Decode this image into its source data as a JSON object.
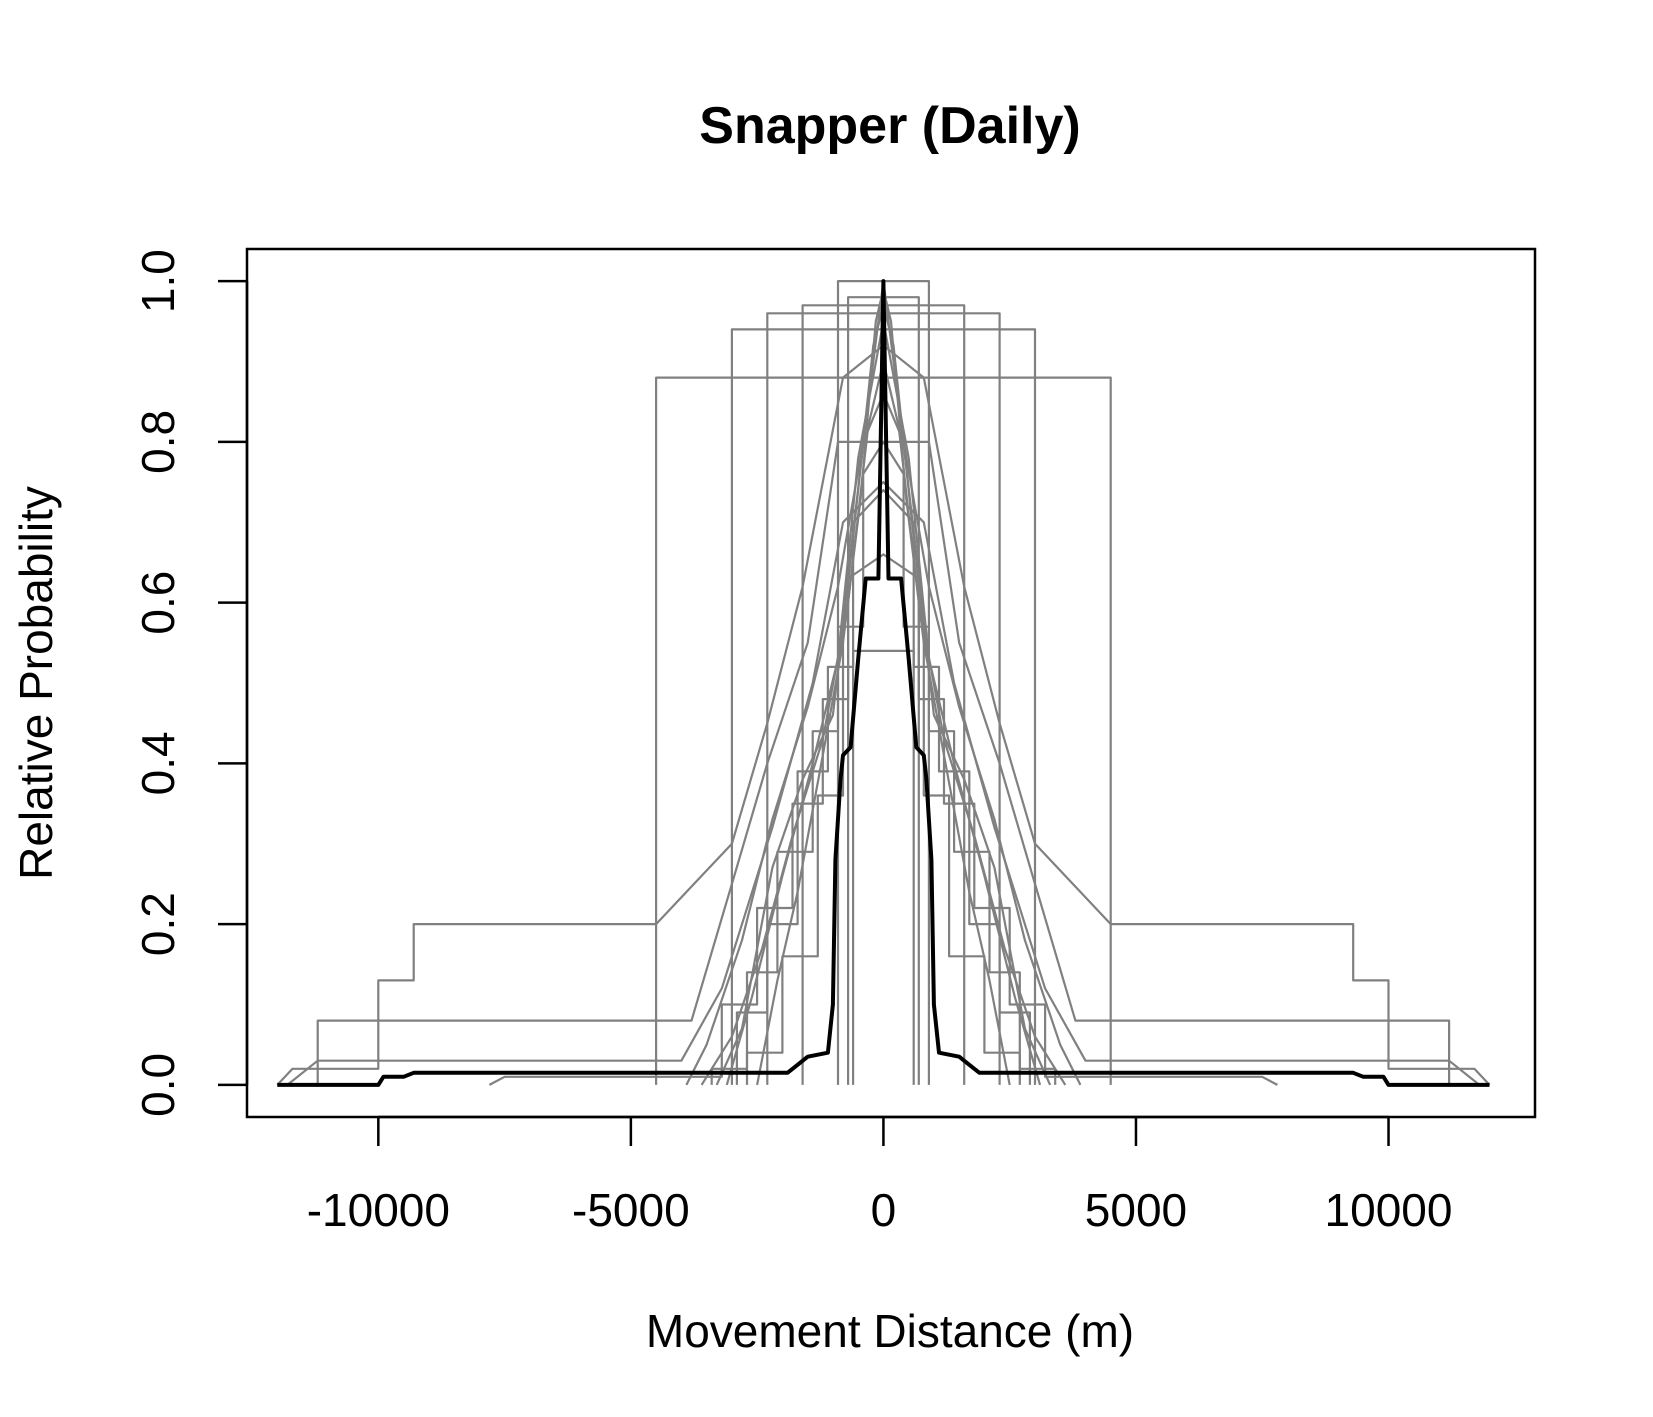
{
  "chart_data": {
    "type": "line",
    "title": "Snapper (Daily)",
    "xlabel": "Movement Distance (m)",
    "ylabel": "Relative Probability",
    "xlim": [
      -12600,
      12900
    ],
    "ylim": [
      -0.04,
      1.04
    ],
    "x_ticks": [
      -10000,
      -5000,
      0,
      5000,
      10000
    ],
    "x_tick_labels": [
      "-10000",
      "-5000",
      "0",
      "5000",
      "10000"
    ],
    "y_ticks": [
      0.0,
      0.2,
      0.4,
      0.6,
      0.8,
      1.0
    ],
    "y_tick_labels": [
      "0.0",
      "0.2",
      "0.4",
      "0.6",
      "0.8",
      "1.0"
    ],
    "grid": false,
    "legend": "none",
    "series_colors": {
      "individual": "#808080",
      "mean": "#000000"
    },
    "series": [
      {
        "style": "individual",
        "x": [
          -4500,
          -4500,
          4500,
          4500
        ],
        "y": [
          0.0,
          0.88,
          0.88,
          0.0
        ]
      },
      {
        "style": "individual",
        "x": [
          -3000,
          -3000,
          3000,
          3000
        ],
        "y": [
          0.0,
          0.94,
          0.94,
          0.0
        ]
      },
      {
        "style": "individual",
        "x": [
          -2300,
          -2300,
          2300,
          2300
        ],
        "y": [
          0.0,
          0.96,
          0.96,
          0.0
        ]
      },
      {
        "style": "individual",
        "x": [
          -1600,
          -1600,
          1600,
          1600
        ],
        "y": [
          0.0,
          0.97,
          0.97,
          0.0
        ]
      },
      {
        "style": "individual",
        "x": [
          -900,
          -900,
          900,
          900
        ],
        "y": [
          0.0,
          1.0,
          1.0,
          0.0
        ]
      },
      {
        "style": "individual",
        "x": [
          -700,
          -700,
          700,
          700
        ],
        "y": [
          0.0,
          0.98,
          0.98,
          0.0
        ]
      },
      {
        "style": "individual",
        "x": [
          -600,
          -600,
          600,
          600
        ],
        "y": [
          0.0,
          0.54,
          0.54,
          0.0
        ]
      },
      {
        "style": "individual",
        "x": [
          -12000,
          -11700,
          -10000,
          -10000,
          -9300,
          -9300,
          -4500,
          -4500,
          -3000,
          -2300,
          -1600,
          -1200,
          -800,
          0,
          800,
          1200,
          1600,
          2300,
          3000,
          4500,
          4500,
          9300,
          9300,
          10000,
          10000,
          11700,
          12000
        ],
        "y": [
          0.0,
          0.02,
          0.02,
          0.13,
          0.13,
          0.2,
          0.2,
          0.2,
          0.3,
          0.45,
          0.62,
          0.75,
          0.88,
          0.92,
          0.88,
          0.75,
          0.62,
          0.45,
          0.3,
          0.2,
          0.2,
          0.2,
          0.13,
          0.13,
          0.02,
          0.02,
          0.0
        ]
      },
      {
        "style": "individual",
        "x": [
          -11200,
          -11200,
          -3800,
          -3000,
          -2300,
          -1500,
          -900,
          0,
          900,
          1500,
          2300,
          3000,
          3800,
          11200,
          11200
        ],
        "y": [
          0.0,
          0.08,
          0.08,
          0.25,
          0.4,
          0.55,
          0.8,
          0.8,
          0.8,
          0.55,
          0.4,
          0.25,
          0.08,
          0.08,
          0.0
        ]
      },
      {
        "style": "individual",
        "x": [
          -11800,
          -11200,
          -4000,
          -3200,
          -2200,
          -1400,
          -800,
          0,
          800,
          1400,
          2200,
          3200,
          4000,
          11200,
          11800
        ],
        "y": [
          0.0,
          0.03,
          0.03,
          0.12,
          0.32,
          0.5,
          0.7,
          0.75,
          0.7,
          0.5,
          0.32,
          0.12,
          0.03,
          0.03,
          0.0
        ]
      },
      {
        "style": "individual",
        "x": [
          -7800,
          -7500,
          -3200,
          -3200,
          -2500,
          -2500,
          -1800,
          -1800,
          -1200,
          -1200,
          -700,
          -700,
          0,
          700,
          700,
          1200,
          1200,
          1800,
          1800,
          2500,
          2500,
          3200,
          3200,
          7500,
          7800
        ],
        "y": [
          0.0,
          0.01,
          0.01,
          0.1,
          0.1,
          0.22,
          0.22,
          0.35,
          0.35,
          0.48,
          0.48,
          0.63,
          0.66,
          0.63,
          0.48,
          0.48,
          0.35,
          0.35,
          0.22,
          0.22,
          0.1,
          0.1,
          0.01,
          0.01,
          0.0
        ]
      },
      {
        "style": "individual",
        "x": [
          -3900,
          -3500,
          -2800,
          -2200,
          -1500,
          -900,
          -400,
          0,
          400,
          900,
          1500,
          2200,
          2800,
          3500,
          3900
        ],
        "y": [
          0.0,
          0.05,
          0.18,
          0.33,
          0.47,
          0.62,
          0.8,
          0.86,
          0.8,
          0.62,
          0.47,
          0.33,
          0.18,
          0.05,
          0.0
        ]
      },
      {
        "style": "individual",
        "x": [
          -3400,
          -3400,
          -2700,
          -2700,
          -2100,
          -2100,
          -1400,
          -1400,
          -900,
          -900,
          -400,
          -400,
          0,
          400,
          400,
          900,
          900,
          1400,
          1400,
          2100,
          2100,
          2700,
          2700,
          3400,
          3400
        ],
        "y": [
          0.0,
          0.02,
          0.02,
          0.14,
          0.14,
          0.29,
          0.29,
          0.44,
          0.44,
          0.57,
          0.57,
          0.76,
          0.8,
          0.76,
          0.57,
          0.57,
          0.44,
          0.44,
          0.29,
          0.29,
          0.14,
          0.14,
          0.02,
          0.02,
          0.0
        ]
      },
      {
        "style": "individual",
        "x": [
          -3600,
          -3000,
          -2400,
          -1800,
          -1200,
          -700,
          -300,
          0,
          300,
          700,
          1200,
          1800,
          2400,
          3000,
          3600
        ],
        "y": [
          0.0,
          0.06,
          0.17,
          0.31,
          0.43,
          0.6,
          0.82,
          0.9,
          0.82,
          0.6,
          0.43,
          0.31,
          0.17,
          0.06,
          0.0
        ]
      },
      {
        "style": "individual",
        "x": [
          -2900,
          -2900,
          -2300,
          -2300,
          -1700,
          -1700,
          -1100,
          -1100,
          -600,
          -600,
          0,
          600,
          600,
          1100,
          1100,
          1700,
          1700,
          2300,
          2300,
          2900,
          2900
        ],
        "y": [
          0.0,
          0.09,
          0.09,
          0.2,
          0.2,
          0.39,
          0.39,
          0.52,
          0.52,
          0.7,
          0.74,
          0.7,
          0.52,
          0.52,
          0.39,
          0.39,
          0.2,
          0.2,
          0.09,
          0.09,
          0.0
        ]
      },
      {
        "style": "individual",
        "x": [
          -3100,
          -2600,
          -2000,
          -1400,
          -900,
          -500,
          0,
          500,
          900,
          1400,
          2000,
          2600,
          3100
        ],
        "y": [
          0.0,
          0.11,
          0.26,
          0.4,
          0.53,
          0.78,
          0.95,
          0.78,
          0.53,
          0.4,
          0.26,
          0.11,
          0.0
        ]
      },
      {
        "style": "individual",
        "x": [
          -2700,
          -2700,
          -2000,
          -2000,
          -1300,
          -1300,
          -800,
          -800,
          -300,
          0,
          300,
          800,
          800,
          1300,
          1300,
          2000,
          2000,
          2700,
          2700
        ],
        "y": [
          0.0,
          0.04,
          0.04,
          0.16,
          0.16,
          0.36,
          0.36,
          0.58,
          0.85,
          1.0,
          0.85,
          0.58,
          0.36,
          0.36,
          0.16,
          0.16,
          0.04,
          0.04,
          0.0
        ]
      },
      {
        "style": "individual",
        "x": [
          -3300,
          -2800,
          -2200,
          -1600,
          -1000,
          -600,
          -200,
          0,
          200,
          600,
          1000,
          1600,
          2200,
          2800,
          3300
        ],
        "y": [
          0.0,
          0.07,
          0.27,
          0.38,
          0.46,
          0.68,
          0.92,
          0.97,
          0.92,
          0.68,
          0.46,
          0.38,
          0.27,
          0.07,
          0.0
        ]
      },
      {
        "style": "individual",
        "x": [
          -2500,
          -2100,
          -1700,
          -1200,
          -800,
          -450,
          -150,
          0,
          150,
          450,
          800,
          1200,
          1700,
          2100,
          2500
        ],
        "y": [
          0.0,
          0.13,
          0.24,
          0.41,
          0.55,
          0.73,
          0.95,
          0.99,
          0.95,
          0.73,
          0.55,
          0.41,
          0.24,
          0.13,
          0.0
        ]
      },
      {
        "style": "mean",
        "x": [
          -12000,
          -10000,
          -9900,
          -9500,
          -9300,
          -1900,
          -1700,
          -1500,
          -1100,
          -1000,
          -950,
          -850,
          -800,
          -650,
          -500,
          -350,
          -300,
          -100,
          0,
          100,
          300,
          350,
          500,
          650,
          800,
          850,
          950,
          1000,
          1100,
          1500,
          1700,
          1900,
          9300,
          9500,
          9900,
          10000,
          12000
        ],
        "y": [
          0.0,
          0.0,
          0.01,
          0.01,
          0.015,
          0.015,
          0.025,
          0.035,
          0.04,
          0.1,
          0.28,
          0.38,
          0.41,
          0.42,
          0.53,
          0.63,
          0.63,
          0.63,
          1.0,
          0.63,
          0.63,
          0.63,
          0.53,
          0.42,
          0.41,
          0.38,
          0.28,
          0.1,
          0.04,
          0.035,
          0.025,
          0.015,
          0.015,
          0.01,
          0.01,
          0.0,
          0.0
        ]
      }
    ]
  }
}
